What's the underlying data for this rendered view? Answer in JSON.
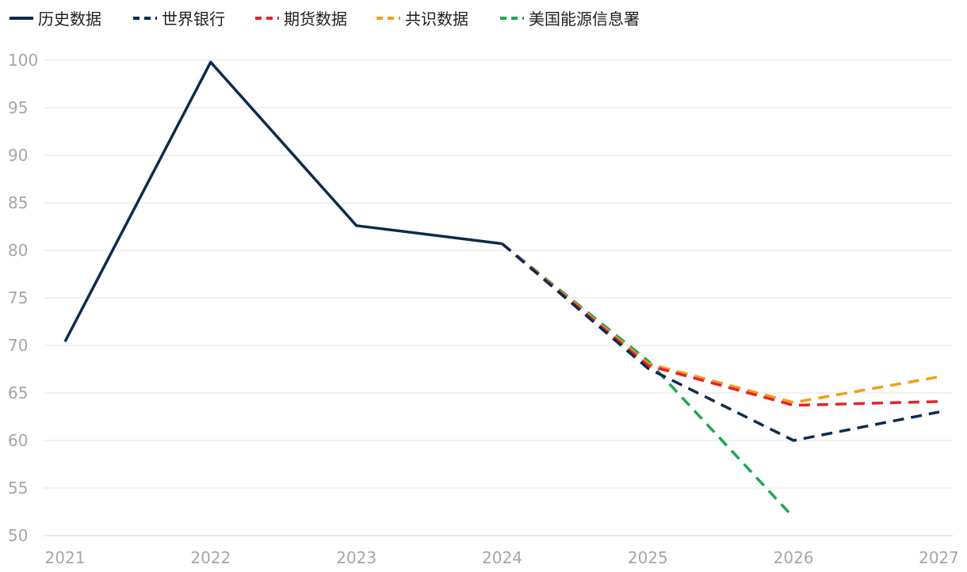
{
  "chart_data": {
    "type": "line",
    "x": [
      2021,
      2022,
      2023,
      2024,
      2025,
      2026,
      2027
    ],
    "xlim": [
      2021,
      2027
    ],
    "ylim": [
      50,
      100
    ],
    "yticks": [
      50,
      55,
      60,
      65,
      70,
      75,
      80,
      85,
      90,
      95,
      100
    ],
    "grid": true,
    "legend_position": "top-left",
    "series": [
      {
        "name": "历史数据",
        "color": "#0d2b4f",
        "dash": false,
        "points": [
          [
            2021,
            70.4
          ],
          [
            2022,
            99.8
          ],
          [
            2023,
            82.6
          ],
          [
            2024,
            80.7
          ]
        ]
      },
      {
        "name": "世界银行",
        "color": "#0d2b4f",
        "dash": true,
        "points": [
          [
            2024,
            80.7
          ],
          [
            2025,
            67.6
          ],
          [
            2026,
            60.0
          ],
          [
            2027,
            63.0
          ]
        ]
      },
      {
        "name": "期货数据",
        "color": "#e3232c",
        "dash": true,
        "points": [
          [
            2024,
            80.7
          ],
          [
            2025,
            67.9
          ],
          [
            2026,
            63.7
          ],
          [
            2027,
            64.1
          ]
        ]
      },
      {
        "name": "共识数据",
        "color": "#f59c1a",
        "dash": true,
        "points": [
          [
            2024,
            80.7
          ],
          [
            2025,
            68.1
          ],
          [
            2026,
            64.0
          ],
          [
            2027,
            66.7
          ]
        ]
      },
      {
        "name": "美国能源信息署",
        "color": "#1fa74f",
        "dash": true,
        "points": [
          [
            2024,
            80.7
          ],
          [
            2025,
            68.4
          ],
          [
            2026,
            51.9
          ]
        ]
      }
    ]
  }
}
